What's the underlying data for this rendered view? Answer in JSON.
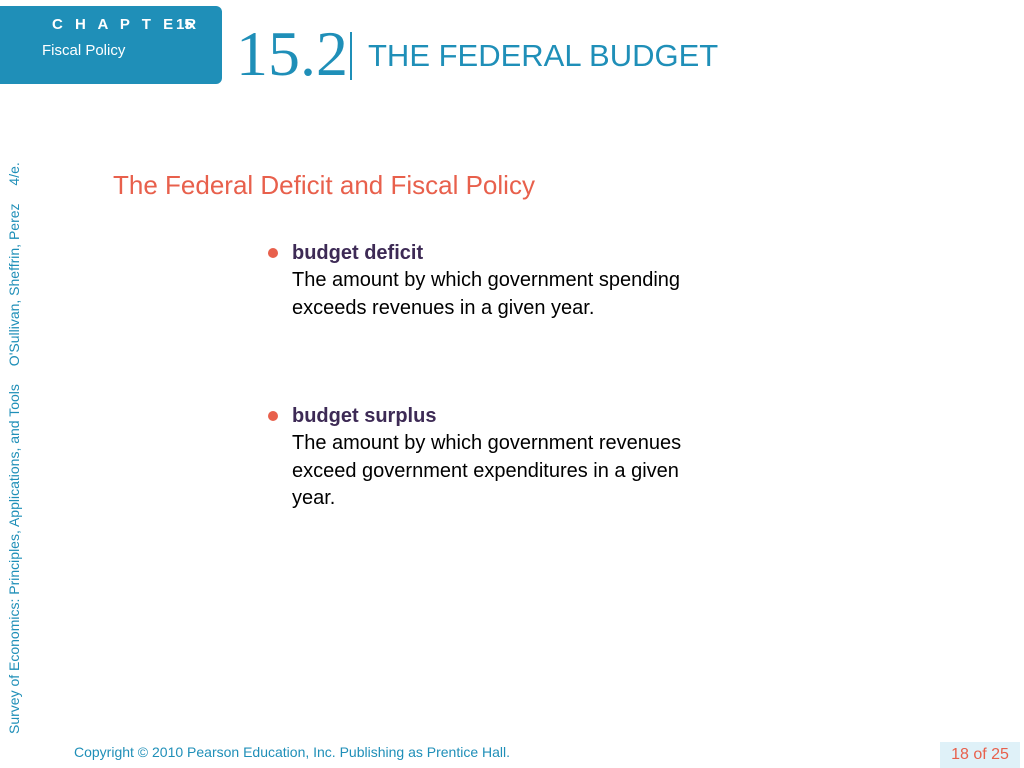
{
  "header": {
    "chapter_label": "C H A P T E R",
    "chapter_number": "15",
    "chapter_topic": "Fiscal Policy",
    "section_number": "15.2",
    "section_title": "THE FEDERAL BUDGET"
  },
  "sidebar": {
    "book": "Survey of Economics: Principles, Applications, and Tools",
    "authors": "O'Sullivan, Sheffrin, Perez",
    "edition": "4/e."
  },
  "slide": {
    "heading": "The Federal Deficit and Fiscal Policy",
    "items": [
      {
        "term": "budget deficit",
        "definition": "The amount by which government spending exceeds revenues in a given year."
      },
      {
        "term": "budget surplus",
        "definition": "The amount by which government revenues exceed government expenditures in a given year."
      }
    ]
  },
  "footer": {
    "copyright": "Copyright © 2010  Pearson Education, Inc. Publishing as Prentice Hall.",
    "page": "18 of 25"
  },
  "colors": {
    "brand_blue": "#1f8fb8",
    "accent_coral": "#e8604c",
    "term_purple": "#3d2a55"
  }
}
